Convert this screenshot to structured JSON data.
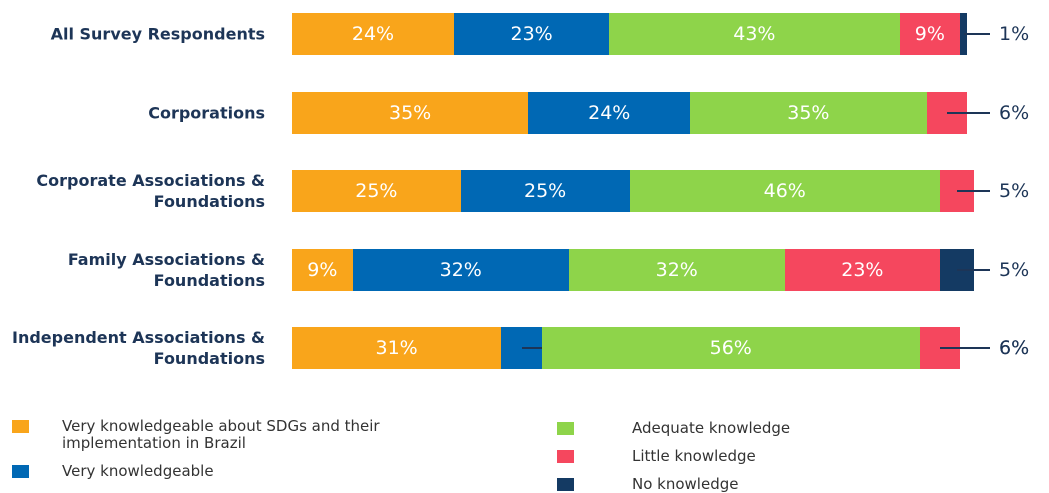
{
  "chart_data": {
    "type": "stacked-bar-horizontal",
    "categories": [
      "All Survey Respondents",
      "Corporations",
      "Corporate Associations & Foundations",
      "Family Associations & Foundations",
      "Independent Associations & Foundations"
    ],
    "series": [
      {
        "name": "Very knowledgeable about SDGs and their implementation in Brazil",
        "color": "#f9a51b",
        "values": [
          24,
          35,
          25,
          9,
          31
        ],
        "value_labels": [
          "24%",
          "35%",
          "25%",
          "9%",
          "31%"
        ]
      },
      {
        "name": "Very knowledgeable",
        "color": "#0068b4",
        "values": [
          23,
          24,
          25,
          32,
          6
        ],
        "value_labels": [
          "23%",
          "24%",
          "25%",
          "32%",
          "6%"
        ]
      },
      {
        "name": "Adequate knowledge",
        "color": "#8ed44a",
        "values": [
          43,
          35,
          46,
          32,
          56
        ],
        "value_labels": [
          "43%",
          "35%",
          "46%",
          "32%",
          "56%"
        ]
      },
      {
        "name": "Little knowledge",
        "color": "#f5475e",
        "values": [
          9,
          6,
          5,
          23,
          6
        ],
        "value_labels": [
          "9%",
          "6%",
          "5%",
          "23%",
          "6%"
        ]
      },
      {
        "name": "No knowledge",
        "color": "#143a63",
        "values": [
          1,
          null,
          null,
          5,
          null
        ],
        "value_labels": [
          "1%",
          null,
          null,
          "5%",
          null
        ]
      }
    ]
  }
}
